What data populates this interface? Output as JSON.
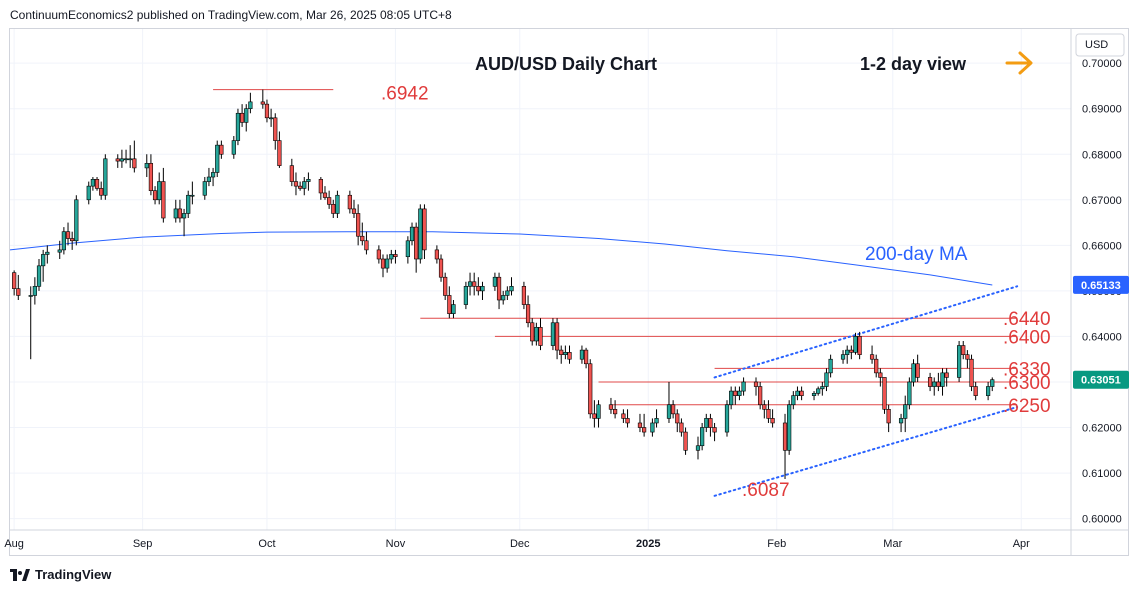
{
  "header": {
    "publisher_line": "ContinuumEconomics2 published on TradingView.com, Mar 26, 2025 08:05 UTC+8"
  },
  "footer": {
    "brand": "TradingView"
  },
  "chart_data": {
    "type": "candlestick",
    "title": "AUD/USD Daily Chart",
    "view_label": "1-2 day view",
    "currency": "USD",
    "current_price_label": "0.63051",
    "current_price": 0.6305,
    "ma_label": "200-day MA",
    "ma_price_label": "0.65133",
    "ylim": [
      0.5975,
      0.7075
    ],
    "yticks": [
      0.7,
      0.69,
      0.68,
      0.67,
      0.66,
      0.65,
      0.64,
      0.63,
      0.62,
      0.61,
      0.6
    ],
    "ytick_labels": [
      "0.70000",
      "0.69000",
      "0.68000",
      "0.67000",
      "0.66000",
      "0.65000",
      "0.64000",
      "0.63000",
      "0.62000",
      "0.61000",
      "0.60000"
    ],
    "xticks": [
      {
        "label": "Aug",
        "date": "2024-08-01"
      },
      {
        "label": "Sep",
        "date": "2024-09-01"
      },
      {
        "label": "Oct",
        "date": "2024-10-01"
      },
      {
        "label": "Nov",
        "date": "2024-11-01"
      },
      {
        "label": "Dec",
        "date": "2024-12-01"
      },
      {
        "label": "2025",
        "date": "2025-01-01"
      },
      {
        "label": "Feb",
        "date": "2025-02-01"
      },
      {
        "label": "Mar",
        "date": "2025-03-01"
      },
      {
        "label": "Apr",
        "date": "2025-04-01"
      }
    ],
    "xlim": [
      "2024-07-31",
      "2025-04-13"
    ],
    "levels": [
      {
        "label": ".6942",
        "price": 0.6942,
        "from": "2024-09-18",
        "to": "2024-10-17"
      },
      {
        "label": ".6440",
        "price": 0.644,
        "from": "2024-11-07",
        "to": "2025-03-31"
      },
      {
        "label": ".6400",
        "price": 0.64,
        "from": "2024-11-25",
        "to": "2025-03-31"
      },
      {
        "label": ".6330",
        "price": 0.633,
        "from": "2025-01-17",
        "to": "2025-03-31"
      },
      {
        "label": ".6300",
        "price": 0.63,
        "from": "2024-12-20",
        "to": "2025-03-31"
      },
      {
        "label": ".6250",
        "price": 0.625,
        "from": "2024-12-23",
        "to": "2025-03-31"
      },
      {
        "label": ".6087",
        "price": 0.6087
      }
    ],
    "channel": {
      "upper": [
        [
          "2025-01-17",
          0.631
        ],
        [
          "2025-03-31",
          0.651
        ]
      ],
      "lower": [
        [
          "2025-01-17",
          0.605
        ],
        [
          "2025-03-31",
          0.6245
        ]
      ]
    },
    "ma200": [
      [
        "2024-07-31",
        0.659
      ],
      [
        "2024-08-15",
        0.6605
      ],
      [
        "2024-09-01",
        0.6618
      ],
      [
        "2024-09-20",
        0.6626
      ],
      [
        "2024-10-01",
        0.6629
      ],
      [
        "2024-10-20",
        0.663
      ],
      [
        "2024-11-10",
        0.663
      ],
      [
        "2024-12-01",
        0.6625
      ],
      [
        "2024-12-20",
        0.6615
      ],
      [
        "2025-01-05",
        0.6603
      ],
      [
        "2025-01-20",
        0.6588
      ],
      [
        "2025-02-05",
        0.6575
      ],
      [
        "2025-02-20",
        0.6557
      ],
      [
        "2025-03-10",
        0.6535
      ],
      [
        "2025-03-25",
        0.6513
      ]
    ],
    "candles": [
      [
        "2024-08-01",
        0.654,
        0.6545,
        0.649,
        0.6505
      ],
      [
        "2024-08-02",
        0.6505,
        0.6535,
        0.648,
        0.649
      ],
      [
        "2024-08-05",
        0.649,
        0.651,
        0.635,
        0.649
      ],
      [
        "2024-08-06",
        0.649,
        0.653,
        0.647,
        0.651
      ],
      [
        "2024-08-07",
        0.651,
        0.657,
        0.65,
        0.6555
      ],
      [
        "2024-08-08",
        0.6555,
        0.659,
        0.652,
        0.658
      ],
      [
        "2024-08-09",
        0.658,
        0.66,
        0.656,
        0.6585
      ],
      [
        "2024-08-12",
        0.6585,
        0.661,
        0.657,
        0.659
      ],
      [
        "2024-08-13",
        0.659,
        0.664,
        0.658,
        0.663
      ],
      [
        "2024-08-14",
        0.663,
        0.665,
        0.66,
        0.6615
      ],
      [
        "2024-08-15",
        0.6615,
        0.663,
        0.659,
        0.661
      ],
      [
        "2024-08-16",
        0.661,
        0.671,
        0.66,
        0.67
      ],
      [
        "2024-08-19",
        0.67,
        0.674,
        0.669,
        0.673
      ],
      [
        "2024-08-20",
        0.673,
        0.675,
        0.672,
        0.6745
      ],
      [
        "2024-08-21",
        0.6745,
        0.675,
        0.672,
        0.6725
      ],
      [
        "2024-08-22",
        0.6725,
        0.674,
        0.67,
        0.671
      ],
      [
        "2024-08-23",
        0.671,
        0.68,
        0.67,
        0.679
      ],
      [
        "2024-08-26",
        0.679,
        0.68,
        0.677,
        0.6785
      ],
      [
        "2024-08-27",
        0.6785,
        0.681,
        0.677,
        0.679
      ],
      [
        "2024-08-28",
        0.679,
        0.681,
        0.678,
        0.679
      ],
      [
        "2024-08-29",
        0.679,
        0.682,
        0.677,
        0.679
      ],
      [
        "2024-08-30",
        0.679,
        0.683,
        0.676,
        0.677
      ],
      [
        "2024-09-02",
        0.677,
        0.68,
        0.675,
        0.678
      ],
      [
        "2024-09-03",
        0.678,
        0.68,
        0.671,
        0.672
      ],
      [
        "2024-09-04",
        0.672,
        0.673,
        0.669,
        0.67
      ],
      [
        "2024-09-05",
        0.67,
        0.676,
        0.669,
        0.674
      ],
      [
        "2024-09-06",
        0.674,
        0.677,
        0.665,
        0.666
      ],
      [
        "2024-09-09",
        0.666,
        0.67,
        0.665,
        0.668
      ],
      [
        "2024-09-10",
        0.668,
        0.67,
        0.665,
        0.666
      ],
      [
        "2024-09-11",
        0.666,
        0.668,
        0.662,
        0.667
      ],
      [
        "2024-09-12",
        0.667,
        0.672,
        0.666,
        0.671
      ],
      [
        "2024-09-13",
        0.671,
        0.674,
        0.669,
        0.671
      ],
      [
        "2024-09-16",
        0.671,
        0.675,
        0.67,
        0.674
      ],
      [
        "2024-09-17",
        0.674,
        0.677,
        0.673,
        0.675
      ],
      [
        "2024-09-18",
        0.675,
        0.677,
        0.673,
        0.676
      ],
      [
        "2024-09-19",
        0.676,
        0.683,
        0.675,
        0.682
      ],
      [
        "2024-09-20",
        0.682,
        0.683,
        0.679,
        0.68
      ],
      [
        "2024-09-23",
        0.68,
        0.684,
        0.679,
        0.683
      ],
      [
        "2024-09-24",
        0.683,
        0.69,
        0.682,
        0.689
      ],
      [
        "2024-09-25",
        0.689,
        0.691,
        0.686,
        0.687
      ],
      [
        "2024-09-26",
        0.687,
        0.691,
        0.685,
        0.69
      ],
      [
        "2024-09-27",
        0.69,
        0.6935,
        0.689,
        0.6915
      ],
      [
        "2024-09-30",
        0.6915,
        0.6942,
        0.69,
        0.691
      ],
      [
        "2024-10-01",
        0.691,
        0.692,
        0.687,
        0.688
      ],
      [
        "2024-10-02",
        0.688,
        0.69,
        0.686,
        0.688
      ],
      [
        "2024-10-03",
        0.688,
        0.689,
        0.681,
        0.683
      ],
      [
        "2024-10-04",
        0.683,
        0.685,
        0.677,
        0.6775
      ],
      [
        "2024-10-07",
        0.6775,
        0.679,
        0.673,
        0.674
      ],
      [
        "2024-10-08",
        0.674,
        0.676,
        0.671,
        0.673
      ],
      [
        "2024-10-09",
        0.673,
        0.674,
        0.672,
        0.6725
      ],
      [
        "2024-10-10",
        0.6725,
        0.675,
        0.671,
        0.674
      ],
      [
        "2024-10-11",
        0.674,
        0.676,
        0.672,
        0.6745
      ],
      [
        "2024-10-14",
        0.6745,
        0.675,
        0.67,
        0.6715
      ],
      [
        "2024-10-15",
        0.6715,
        0.673,
        0.67,
        0.6705
      ],
      [
        "2024-10-16",
        0.6705,
        0.672,
        0.668,
        0.669
      ],
      [
        "2024-10-17",
        0.669,
        0.67,
        0.666,
        0.667
      ],
      [
        "2024-10-18",
        0.667,
        0.672,
        0.666,
        0.671
      ],
      [
        "2024-10-21",
        0.671,
        0.672,
        0.667,
        0.668
      ],
      [
        "2024-10-22",
        0.668,
        0.67,
        0.666,
        0.667
      ],
      [
        "2024-10-23",
        0.667,
        0.669,
        0.66,
        0.662
      ],
      [
        "2024-10-24",
        0.662,
        0.665,
        0.66,
        0.661
      ],
      [
        "2024-10-25",
        0.661,
        0.663,
        0.658,
        0.659
      ],
      [
        "2024-10-28",
        0.659,
        0.66,
        0.656,
        0.657
      ],
      [
        "2024-10-29",
        0.657,
        0.658,
        0.653,
        0.655
      ],
      [
        "2024-10-30",
        0.655,
        0.658,
        0.654,
        0.657
      ],
      [
        "2024-10-31",
        0.657,
        0.659,
        0.656,
        0.658
      ],
      [
        "2024-11-01",
        0.658,
        0.659,
        0.656,
        0.6575
      ],
      [
        "2024-11-04",
        0.6575,
        0.662,
        0.656,
        0.661
      ],
      [
        "2024-11-05",
        0.661,
        0.665,
        0.66,
        0.664
      ],
      [
        "2024-11-06",
        0.664,
        0.665,
        0.654,
        0.657
      ],
      [
        "2024-11-07",
        0.657,
        0.669,
        0.656,
        0.668
      ],
      [
        "2024-11-08",
        0.668,
        0.669,
        0.657,
        0.659
      ],
      [
        "2024-11-11",
        0.659,
        0.66,
        0.656,
        0.657
      ],
      [
        "2024-11-12",
        0.657,
        0.658,
        0.652,
        0.653
      ],
      [
        "2024-11-13",
        0.653,
        0.654,
        0.648,
        0.649
      ],
      [
        "2024-11-14",
        0.649,
        0.651,
        0.644,
        0.645
      ],
      [
        "2024-11-15",
        0.645,
        0.648,
        0.644,
        0.647
      ],
      [
        "2024-11-18",
        0.647,
        0.652,
        0.646,
        0.651
      ],
      [
        "2024-11-19",
        0.651,
        0.654,
        0.649,
        0.652
      ],
      [
        "2024-11-20",
        0.652,
        0.654,
        0.649,
        0.651
      ],
      [
        "2024-11-21",
        0.651,
        0.653,
        0.649,
        0.65
      ],
      [
        "2024-11-22",
        0.65,
        0.652,
        0.648,
        0.651
      ],
      [
        "2024-11-25",
        0.651,
        0.654,
        0.65,
        0.653
      ],
      [
        "2024-11-26",
        0.653,
        0.654,
        0.646,
        0.648
      ],
      [
        "2024-11-27",
        0.648,
        0.65,
        0.647,
        0.649
      ],
      [
        "2024-11-28",
        0.649,
        0.651,
        0.648,
        0.65
      ],
      [
        "2024-11-29",
        0.65,
        0.653,
        0.649,
        0.651
      ],
      [
        "2024-12-02",
        0.651,
        0.652,
        0.646,
        0.647
      ],
      [
        "2024-12-03",
        0.647,
        0.649,
        0.642,
        0.643
      ],
      [
        "2024-12-04",
        0.643,
        0.644,
        0.638,
        0.639
      ],
      [
        "2024-12-05",
        0.639,
        0.643,
        0.638,
        0.642
      ],
      [
        "2024-12-06",
        0.642,
        0.644,
        0.637,
        0.638
      ],
      [
        "2024-12-09",
        0.638,
        0.644,
        0.637,
        0.643
      ],
      [
        "2024-12-10",
        0.643,
        0.644,
        0.635,
        0.637
      ],
      [
        "2024-12-11",
        0.637,
        0.638,
        0.634,
        0.636
      ],
      [
        "2024-12-12",
        0.636,
        0.638,
        0.635,
        0.6365
      ],
      [
        "2024-12-13",
        0.6365,
        0.638,
        0.634,
        0.635
      ],
      [
        "2024-12-16",
        0.635,
        0.638,
        0.634,
        0.637
      ],
      [
        "2024-12-17",
        0.637,
        0.6375,
        0.633,
        0.634
      ],
      [
        "2024-12-18",
        0.634,
        0.635,
        0.622,
        0.623
      ],
      [
        "2024-12-19",
        0.623,
        0.626,
        0.62,
        0.622
      ],
      [
        "2024-12-20",
        0.622,
        0.626,
        0.62,
        0.625
      ],
      [
        "2024-12-23",
        0.625,
        0.6265,
        0.623,
        0.624
      ],
      [
        "2024-12-24",
        0.624,
        0.626,
        0.622,
        0.623
      ],
      [
        "2024-12-26",
        0.623,
        0.624,
        0.621,
        0.622
      ],
      [
        "2024-12-27",
        0.622,
        0.624,
        0.62,
        0.621
      ],
      [
        "2024-12-30",
        0.621,
        0.623,
        0.619,
        0.62
      ],
      [
        "2024-12-31",
        0.62,
        0.623,
        0.618,
        0.619
      ],
      [
        "2025-01-02",
        0.619,
        0.622,
        0.618,
        0.621
      ],
      [
        "2025-01-03",
        0.621,
        0.624,
        0.62,
        0.622
      ],
      [
        "2025-01-06",
        0.622,
        0.63,
        0.621,
        0.625
      ],
      [
        "2025-01-07",
        0.625,
        0.626,
        0.622,
        0.623
      ],
      [
        "2025-01-08",
        0.623,
        0.624,
        0.619,
        0.621
      ],
      [
        "2025-01-09",
        0.621,
        0.622,
        0.618,
        0.619
      ],
      [
        "2025-01-10",
        0.619,
        0.62,
        0.614,
        0.615
      ],
      [
        "2025-01-13",
        0.615,
        0.618,
        0.613,
        0.616
      ],
      [
        "2025-01-14",
        0.616,
        0.621,
        0.615,
        0.62
      ],
      [
        "2025-01-15",
        0.62,
        0.623,
        0.619,
        0.622
      ],
      [
        "2025-01-16",
        0.622,
        0.623,
        0.618,
        0.62
      ],
      [
        "2025-01-17",
        0.62,
        0.621,
        0.617,
        0.619
      ],
      [
        "2025-01-20",
        0.619,
        0.626,
        0.618,
        0.625
      ],
      [
        "2025-01-21",
        0.625,
        0.629,
        0.624,
        0.628
      ],
      [
        "2025-01-22",
        0.628,
        0.629,
        0.625,
        0.627
      ],
      [
        "2025-01-23",
        0.627,
        0.629,
        0.626,
        0.628
      ],
      [
        "2025-01-24",
        0.628,
        0.631,
        0.627,
        0.63
      ],
      [
        "2025-01-27",
        0.63,
        0.631,
        0.627,
        0.629
      ],
      [
        "2025-01-28",
        0.629,
        0.63,
        0.624,
        0.625
      ],
      [
        "2025-01-29",
        0.625,
        0.626,
        0.622,
        0.624
      ],
      [
        "2025-01-30",
        0.624,
        0.626,
        0.621,
        0.622
      ],
      [
        "2025-01-31",
        0.622,
        0.624,
        0.62,
        0.621
      ],
      [
        "2025-02-03",
        0.621,
        0.623,
        0.6087,
        0.615
      ],
      [
        "2025-02-04",
        0.615,
        0.626,
        0.614,
        0.625
      ],
      [
        "2025-02-05",
        0.625,
        0.628,
        0.624,
        0.627
      ],
      [
        "2025-02-06",
        0.627,
        0.629,
        0.626,
        0.628
      ],
      [
        "2025-02-07",
        0.628,
        0.629,
        0.626,
        0.627
      ],
      [
        "2025-02-10",
        0.627,
        0.628,
        0.626,
        0.6275
      ],
      [
        "2025-02-11",
        0.6275,
        0.629,
        0.627,
        0.6285
      ],
      [
        "2025-02-12",
        0.6285,
        0.63,
        0.627,
        0.629
      ],
      [
        "2025-02-13",
        0.629,
        0.633,
        0.628,
        0.632
      ],
      [
        "2025-02-14",
        0.632,
        0.636,
        0.631,
        0.635
      ],
      [
        "2025-02-17",
        0.635,
        0.637,
        0.634,
        0.636
      ],
      [
        "2025-02-18",
        0.636,
        0.638,
        0.634,
        0.637
      ],
      [
        "2025-02-19",
        0.637,
        0.638,
        0.635,
        0.6365
      ],
      [
        "2025-02-20",
        0.6365,
        0.6408,
        0.636,
        0.64
      ],
      [
        "2025-02-21",
        0.64,
        0.641,
        0.635,
        0.636
      ],
      [
        "2025-02-24",
        0.636,
        0.638,
        0.634,
        0.635
      ],
      [
        "2025-02-25",
        0.635,
        0.636,
        0.631,
        0.632
      ],
      [
        "2025-02-26",
        0.632,
        0.633,
        0.629,
        0.631
      ],
      [
        "2025-02-27",
        0.631,
        0.631,
        0.623,
        0.624
      ],
      [
        "2025-02-28",
        0.624,
        0.625,
        0.619,
        0.621
      ],
      [
        "2025-03-03",
        0.621,
        0.623,
        0.619,
        0.622
      ],
      [
        "2025-03-04",
        0.622,
        0.627,
        0.619,
        0.625
      ],
      [
        "2025-03-05",
        0.625,
        0.631,
        0.624,
        0.63
      ],
      [
        "2025-03-06",
        0.63,
        0.635,
        0.629,
        0.634
      ],
      [
        "2025-03-07",
        0.634,
        0.636,
        0.63,
        0.631
      ],
      [
        "2025-03-10",
        0.631,
        0.632,
        0.628,
        0.629
      ],
      [
        "2025-03-11",
        0.629,
        0.631,
        0.627,
        0.63
      ],
      [
        "2025-03-12",
        0.63,
        0.632,
        0.628,
        0.629
      ],
      [
        "2025-03-13",
        0.629,
        0.633,
        0.627,
        0.632
      ],
      [
        "2025-03-14",
        0.632,
        0.633,
        0.629,
        0.631
      ],
      [
        "2025-03-17",
        0.631,
        0.639,
        0.63,
        0.638
      ],
      [
        "2025-03-18",
        0.638,
        0.639,
        0.635,
        0.636
      ],
      [
        "2025-03-19",
        0.636,
        0.637,
        0.633,
        0.635
      ],
      [
        "2025-03-20",
        0.635,
        0.636,
        0.628,
        0.629
      ],
      [
        "2025-03-21",
        0.629,
        0.63,
        0.626,
        0.627
      ],
      [
        "2025-03-24",
        0.627,
        0.63,
        0.626,
        0.629
      ],
      [
        "2025-03-25",
        0.629,
        0.631,
        0.628,
        0.6305
      ]
    ]
  }
}
